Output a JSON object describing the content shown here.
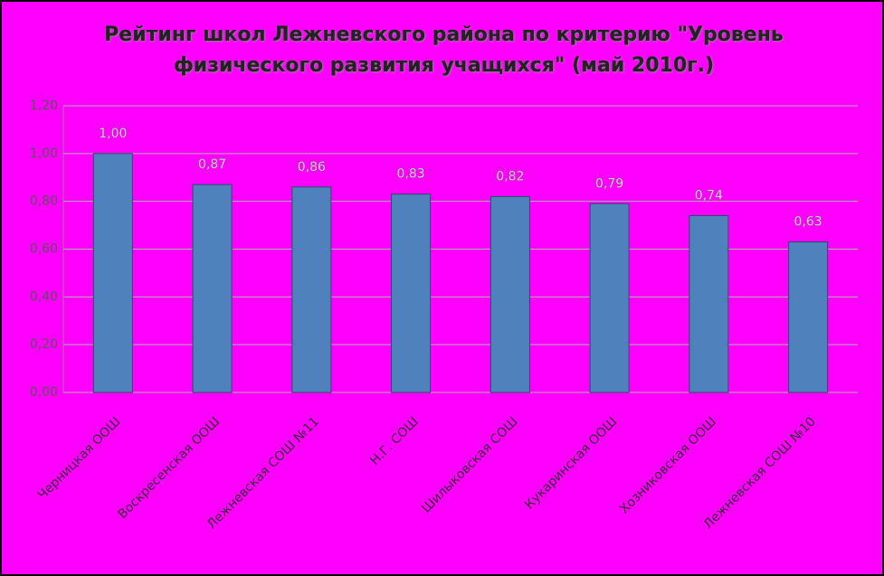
{
  "chart_data": {
    "type": "bar",
    "title": "Рейтинг школ Лежневского района по критерию \"Уровень физического развития учащихся\" (май 2010г.)",
    "categories": [
      "Черницкая ООШ",
      "Воскресенская ООШ",
      "Лежневская СОШ №11",
      "Н.Г. СОШ",
      "Шилыковская СОШ",
      "Кукаринская ООШ",
      "Хозниковская ООШ",
      "Лежневская СОШ №10"
    ],
    "values": [
      1.0,
      0.87,
      0.86,
      0.83,
      0.82,
      0.79,
      0.74,
      0.63
    ],
    "value_labels": [
      "1,00",
      "0,87",
      "0,86",
      "0,83",
      "0,82",
      "0,79",
      "0,74",
      "0,63"
    ],
    "color": "#4f81bd",
    "ylim": [
      0,
      1.2
    ],
    "yticks": [
      {
        "value": 0,
        "label": "0,00"
      },
      {
        "value": 0.2,
        "label": "0,20"
      },
      {
        "value": 0.4,
        "label": "0,40"
      },
      {
        "value": 0.6,
        "label": "0,60"
      },
      {
        "value": 0.8,
        "label": "0,80"
      },
      {
        "value": 1.0,
        "label": "1,00"
      },
      {
        "value": 1.2,
        "label": "1,20"
      }
    ],
    "grid": true
  }
}
